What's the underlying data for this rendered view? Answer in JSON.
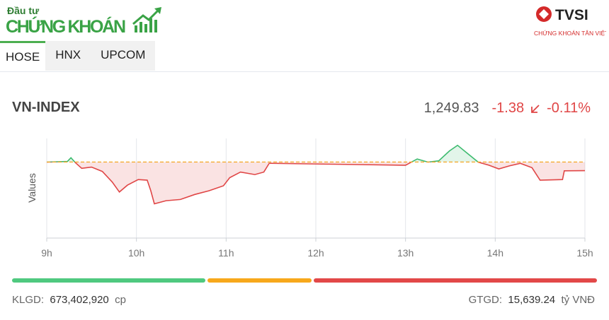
{
  "logo": {
    "top": "Đầu tư",
    "main": "CHỨNG KHOÁN"
  },
  "partner": {
    "name": "TVSI",
    "tagline": "CHỨNG KHOÁN TÂN VIỆT"
  },
  "tabs": [
    "HOSE",
    "HNX",
    "UPCOM"
  ],
  "index": {
    "name": "VN-INDEX",
    "value": "1,249.83",
    "change": "-1.38",
    "change_pct": "-0.11%"
  },
  "chart_data": {
    "type": "line",
    "y_label": "Values",
    "x": [
      9.0,
      9.23,
      9.27,
      9.32,
      9.39,
      9.5,
      9.62,
      9.73,
      9.81,
      9.9,
      10.02,
      10.12,
      10.16,
      10.2,
      10.33,
      10.49,
      10.65,
      10.81,
      10.97,
      11.04,
      11.16,
      11.32,
      11.42,
      11.48,
      11.5,
      13.0,
      13.13,
      13.25,
      13.37,
      13.49,
      13.58,
      13.69,
      13.81,
      13.93,
      14.04,
      14.16,
      14.28,
      14.41,
      14.5,
      14.75,
      14.77,
      15.0
    ],
    "series": [
      {
        "name": "VN-INDEX",
        "color": "#e04646",
        "up_color": "#3dbb6f",
        "values": [
          1251.2,
          1251.3,
          1251.9,
          1251.1,
          1250.2,
          1250.4,
          1249.7,
          1248.0,
          1246.4,
          1247.5,
          1248.4,
          1248.3,
          1246.6,
          1244.5,
          1245.0,
          1245.2,
          1246.0,
          1246.6,
          1247.4,
          1248.7,
          1249.6,
          1249.2,
          1249.6,
          1251.0,
          1251.0,
          1250.7,
          1251.7,
          1251.2,
          1251.4,
          1253.0,
          1253.9,
          1252.6,
          1251.2,
          1250.7,
          1250.1,
          1250.6,
          1251.0,
          1250.3,
          1248.3,
          1248.4,
          1249.8,
          1249.83
        ]
      }
    ],
    "reference": 1251.21,
    "reference_color": "#f5a623",
    "xlim": [
      9,
      15
    ],
    "ylim": [
      1239,
      1255
    ],
    "xticks": [
      {
        "value": 9,
        "label": "9h"
      },
      {
        "value": 10,
        "label": "10h"
      },
      {
        "value": 11,
        "label": "11h"
      },
      {
        "value": 12,
        "label": "12h"
      },
      {
        "value": 13,
        "label": "13h"
      },
      {
        "value": 14,
        "label": "14h"
      },
      {
        "value": 15,
        "label": "15h"
      }
    ],
    "grid": true
  },
  "breadth": {
    "colors": [
      "#4fc97f",
      "#f7a81b",
      "#e24848"
    ],
    "values": [
      33.3,
      17.9,
      48.8
    ]
  },
  "footer": {
    "volume_label": "KLGD:",
    "volume": "673,402,920",
    "volume_unit": "cp",
    "value_label": "GTGD:",
    "value": "15,639.24",
    "value_unit": "tỷ VNĐ"
  }
}
